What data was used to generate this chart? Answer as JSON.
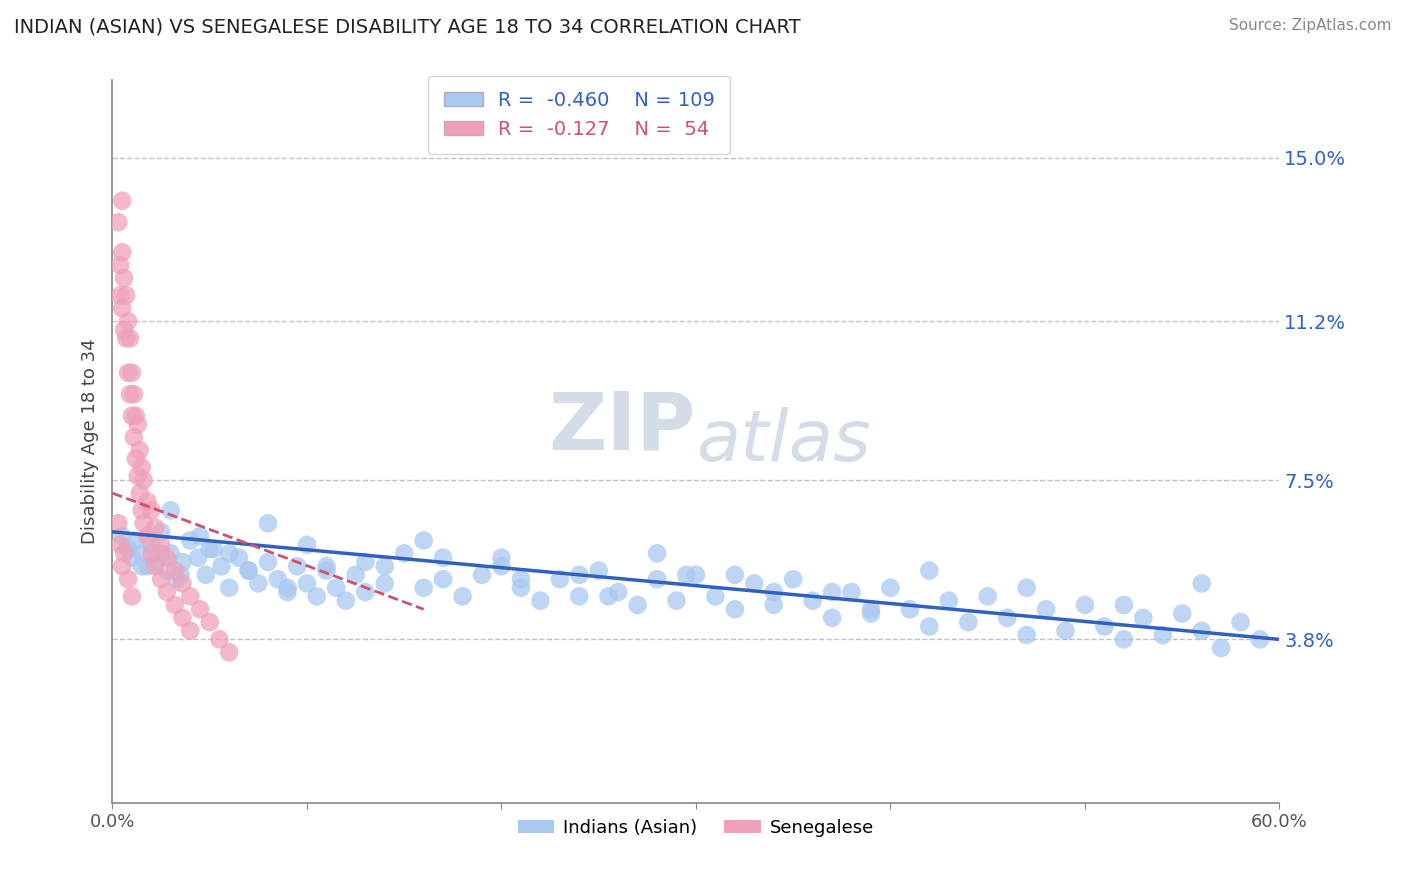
{
  "title": "INDIAN (ASIAN) VS SENEGALESE DISABILITY AGE 18 TO 34 CORRELATION CHART",
  "source_text": "Source: ZipAtlas.com",
  "ylabel": "Disability Age 18 to 34",
  "xlim": [
    0.0,
    0.6
  ],
  "ylim": [
    0.0,
    0.168
  ],
  "ytick_vals": [
    0.038,
    0.075,
    0.112,
    0.15
  ],
  "ytick_labels": [
    "3.8%",
    "7.5%",
    "11.2%",
    "15.0%"
  ],
  "blue_R": -0.46,
  "blue_N": 109,
  "pink_R": -0.127,
  "pink_N": 54,
  "blue_color": "#A8C8F0",
  "pink_color": "#F0A0B8",
  "blue_line_color": "#3060C0",
  "pink_line_color": "#D05070",
  "watermark_color": "#D4DCE8",
  "grid_color": "#C0C0D0",
  "blue_scatter_x": [
    0.005,
    0.008,
    0.01,
    0.012,
    0.015,
    0.018,
    0.02,
    0.022,
    0.025,
    0.028,
    0.03,
    0.033,
    0.036,
    0.04,
    0.044,
    0.048,
    0.052,
    0.056,
    0.06,
    0.065,
    0.07,
    0.075,
    0.08,
    0.085,
    0.09,
    0.095,
    0.1,
    0.105,
    0.11,
    0.115,
    0.12,
    0.125,
    0.13,
    0.14,
    0.15,
    0.16,
    0.17,
    0.18,
    0.19,
    0.2,
    0.21,
    0.22,
    0.23,
    0.24,
    0.25,
    0.26,
    0.27,
    0.28,
    0.29,
    0.3,
    0.31,
    0.32,
    0.33,
    0.34,
    0.35,
    0.36,
    0.37,
    0.38,
    0.39,
    0.4,
    0.41,
    0.42,
    0.43,
    0.44,
    0.45,
    0.46,
    0.47,
    0.48,
    0.49,
    0.5,
    0.51,
    0.52,
    0.53,
    0.54,
    0.55,
    0.56,
    0.57,
    0.58,
    0.59,
    0.03,
    0.045,
    0.06,
    0.08,
    0.1,
    0.13,
    0.16,
    0.2,
    0.24,
    0.28,
    0.32,
    0.37,
    0.42,
    0.47,
    0.52,
    0.56,
    0.015,
    0.025,
    0.035,
    0.05,
    0.07,
    0.09,
    0.11,
    0.14,
    0.17,
    0.21,
    0.255,
    0.295,
    0.34,
    0.39
  ],
  "blue_scatter_y": [
    0.062,
    0.059,
    0.057,
    0.061,
    0.058,
    0.055,
    0.06,
    0.056,
    0.063,
    0.054,
    0.058,
    0.052,
    0.056,
    0.061,
    0.057,
    0.053,
    0.059,
    0.055,
    0.05,
    0.057,
    0.054,
    0.051,
    0.056,
    0.052,
    0.049,
    0.055,
    0.051,
    0.048,
    0.054,
    0.05,
    0.047,
    0.053,
    0.049,
    0.055,
    0.058,
    0.05,
    0.052,
    0.048,
    0.053,
    0.055,
    0.05,
    0.047,
    0.052,
    0.048,
    0.054,
    0.049,
    0.046,
    0.052,
    0.047,
    0.053,
    0.048,
    0.045,
    0.051,
    0.046,
    0.052,
    0.047,
    0.043,
    0.049,
    0.044,
    0.05,
    0.045,
    0.041,
    0.047,
    0.042,
    0.048,
    0.043,
    0.039,
    0.045,
    0.04,
    0.046,
    0.041,
    0.038,
    0.043,
    0.039,
    0.044,
    0.04,
    0.036,
    0.042,
    0.038,
    0.068,
    0.062,
    0.058,
    0.065,
    0.06,
    0.056,
    0.061,
    0.057,
    0.053,
    0.058,
    0.053,
    0.049,
    0.054,
    0.05,
    0.046,
    0.051,
    0.055,
    0.058,
    0.053,
    0.059,
    0.054,
    0.05,
    0.055,
    0.051,
    0.057,
    0.052,
    0.048,
    0.053,
    0.049,
    0.045
  ],
  "pink_scatter_x": [
    0.003,
    0.004,
    0.004,
    0.005,
    0.005,
    0.005,
    0.006,
    0.006,
    0.007,
    0.007,
    0.008,
    0.008,
    0.009,
    0.009,
    0.01,
    0.01,
    0.011,
    0.011,
    0.012,
    0.012,
    0.013,
    0.013,
    0.014,
    0.014,
    0.015,
    0.015,
    0.016,
    0.016,
    0.018,
    0.018,
    0.02,
    0.02,
    0.022,
    0.022,
    0.025,
    0.025,
    0.028,
    0.028,
    0.032,
    0.032,
    0.036,
    0.036,
    0.04,
    0.04,
    0.045,
    0.05,
    0.055,
    0.06,
    0.003,
    0.004,
    0.005,
    0.006,
    0.008,
    0.01
  ],
  "pink_scatter_y": [
    0.135,
    0.125,
    0.118,
    0.14,
    0.128,
    0.115,
    0.122,
    0.11,
    0.118,
    0.108,
    0.112,
    0.1,
    0.108,
    0.095,
    0.1,
    0.09,
    0.095,
    0.085,
    0.09,
    0.08,
    0.088,
    0.076,
    0.082,
    0.072,
    0.078,
    0.068,
    0.075,
    0.065,
    0.07,
    0.062,
    0.068,
    0.058,
    0.064,
    0.055,
    0.06,
    0.052,
    0.057,
    0.049,
    0.054,
    0.046,
    0.051,
    0.043,
    0.048,
    0.04,
    0.045,
    0.042,
    0.038,
    0.035,
    0.065,
    0.06,
    0.055,
    0.058,
    0.052,
    0.048
  ],
  "blue_trend_x": [
    0.0,
    0.6
  ],
  "blue_trend_y": [
    0.063,
    0.038
  ],
  "pink_trend_x": [
    0.0,
    0.16
  ],
  "pink_trend_y": [
    0.072,
    0.045
  ]
}
